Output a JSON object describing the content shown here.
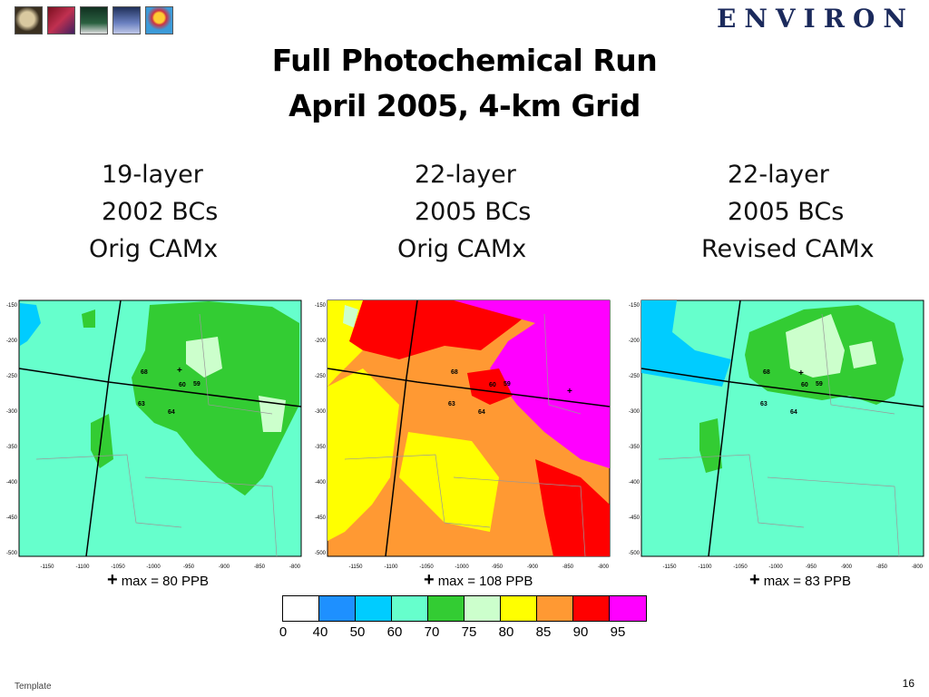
{
  "header": {
    "logo_text": "ENVIRON",
    "thumbnails": [
      "thumb-globe-icon",
      "thumb-molecule-icon",
      "thumb-figure-icon",
      "thumb-fountain-icon",
      "thumb-balloon-icon"
    ]
  },
  "title": {
    "line1": "Full Photochemical Run",
    "line2": "April 2005, 4-km Grid"
  },
  "panels": [
    {
      "head": [
        "19-layer",
        "2002 BCs",
        "Orig CAMx"
      ],
      "max_label": "max = 80 PPB",
      "plus": "+"
    },
    {
      "head": [
        "22-layer",
        "2005 BCs",
        "Orig CAMx"
      ],
      "max_label": "max = 108 PPB",
      "plus": "+"
    },
    {
      "head": [
        "22-layer",
        "2005 BCs",
        "Revised CAMx"
      ],
      "max_label": "max = 83 PPB",
      "plus": "+"
    }
  ],
  "map_axes": {
    "y_ticks": [
      "-150",
      "-200",
      "-250",
      "-300",
      "-350",
      "-400",
      "-450",
      "-500"
    ],
    "x_ticks": [
      "-1150",
      "-1100",
      "-1050",
      "-1000",
      "-950",
      "-900",
      "-850",
      "-800"
    ],
    "site_labels": [
      "68",
      "60",
      "59",
      "63",
      "64"
    ]
  },
  "legend": {
    "colors": [
      "#ffffff",
      "#1e90ff",
      "#00ccff",
      "#66ffcc",
      "#33cc33",
      "#ccffcc",
      "#ffff00",
      "#ff9933",
      "#ff0000",
      "#ff00ff"
    ],
    "labels": [
      "0",
      "40",
      "50",
      "60",
      "70",
      "75",
      "80",
      "85",
      "90",
      "95"
    ]
  },
  "footer": {
    "left": "Template",
    "page": "16"
  }
}
